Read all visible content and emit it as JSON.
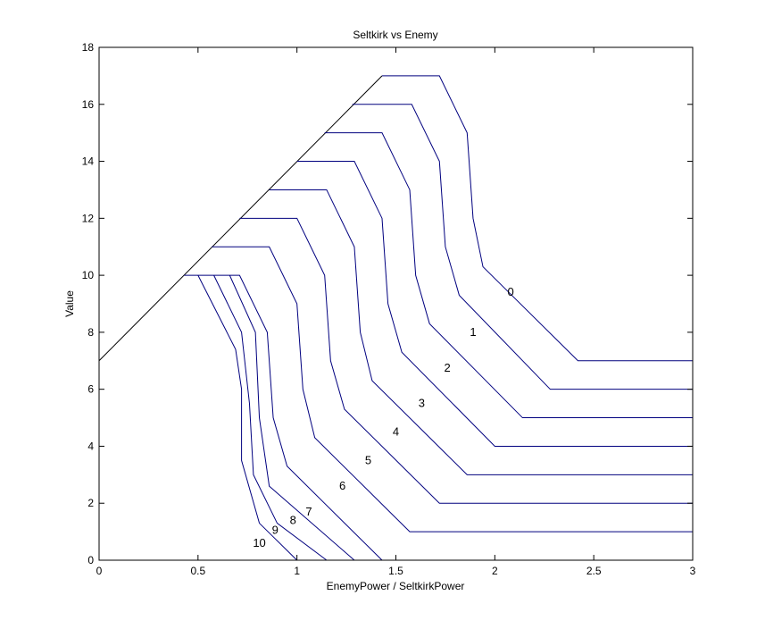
{
  "chart_data": {
    "type": "line",
    "title": "Seltkirk vs Enemy",
    "xlabel": "EnemyPower / SeltkirkPower",
    "ylabel": "Value",
    "xlim": [
      0,
      3
    ],
    "ylim": [
      0,
      18
    ],
    "x_ticks": [
      "0",
      "0.5",
      "1",
      "1.5",
      "2",
      "2.5",
      "3"
    ],
    "y_ticks": [
      "0",
      "2",
      "4",
      "6",
      "8",
      "10",
      "12",
      "14",
      "16",
      "18"
    ],
    "grid": false,
    "colors": {
      "contour": "#00007f",
      "diagonal": "#000000",
      "axes": "#000000"
    },
    "diagonal": {
      "x": [
        0,
        1.43
      ],
      "y": [
        7,
        17
      ]
    },
    "series": [
      {
        "name": "0",
        "label_pos": [
          2.08,
          9.4
        ],
        "x": [
          1.43,
          1.72,
          1.86,
          1.89,
          1.94,
          2.42,
          3.0
        ],
        "y": [
          17,
          17,
          15.0,
          12.0,
          10.3,
          7.0,
          7.0
        ]
      },
      {
        "name": "1",
        "label_pos": [
          1.89,
          8.0
        ],
        "x": [
          1.28,
          1.58,
          1.72,
          1.75,
          1.82,
          2.28,
          3.0
        ],
        "y": [
          16,
          16,
          14.0,
          11.0,
          9.3,
          6.0,
          6.0
        ]
      },
      {
        "name": "2",
        "label_pos": [
          1.76,
          6.75
        ],
        "x": [
          1.14,
          1.43,
          1.57,
          1.6,
          1.67,
          2.14,
          3.0
        ],
        "y": [
          15,
          15,
          13.0,
          10.0,
          8.3,
          5.0,
          5.0
        ]
      },
      {
        "name": "3",
        "label_pos": [
          1.63,
          5.5
        ],
        "x": [
          1.0,
          1.29,
          1.43,
          1.46,
          1.53,
          2.0,
          3.0
        ],
        "y": [
          14,
          14,
          12.0,
          9.0,
          7.3,
          4.0,
          4.0
        ]
      },
      {
        "name": "4",
        "label_pos": [
          1.5,
          4.5
        ],
        "x": [
          0.86,
          1.15,
          1.29,
          1.32,
          1.38,
          1.86,
          3.0
        ],
        "y": [
          13,
          13,
          11.0,
          8.0,
          6.3,
          3.0,
          3.0
        ]
      },
      {
        "name": "5",
        "label_pos": [
          1.36,
          3.5
        ],
        "x": [
          0.71,
          1.0,
          1.14,
          1.17,
          1.24,
          1.72,
          3.0
        ],
        "y": [
          12,
          12,
          10.0,
          7.0,
          5.3,
          2.0,
          2.0
        ]
      },
      {
        "name": "6",
        "label_pos": [
          1.23,
          2.6
        ],
        "x": [
          0.57,
          0.86,
          1.0,
          1.03,
          1.09,
          1.57,
          3.0
        ],
        "y": [
          11,
          11,
          9.0,
          6.0,
          4.3,
          1.0,
          1.0
        ]
      },
      {
        "name": "7",
        "label_pos": [
          1.06,
          1.7
        ],
        "x": [
          0.43,
          0.71,
          0.85,
          0.88,
          0.95,
          1.43
        ],
        "y": [
          10,
          10,
          8.0,
          5.0,
          3.3,
          0.0
        ]
      },
      {
        "name": "8",
        "label_pos": [
          0.98,
          1.4
        ],
        "x": [
          0.66,
          0.79,
          0.81,
          0.86,
          1.29
        ],
        "y": [
          10,
          8.0,
          5.0,
          2.6,
          0.0
        ]
      },
      {
        "name": "9",
        "label_pos": [
          0.89,
          1.05
        ],
        "x": [
          0.58,
          0.72,
          0.76,
          0.78,
          0.9,
          1.15
        ],
        "y": [
          10,
          8.0,
          5.5,
          3.0,
          1.3,
          0.0
        ]
      },
      {
        "name": "10",
        "label_pos": [
          0.81,
          0.6
        ],
        "x": [
          0.5,
          0.69,
          0.72,
          0.72,
          0.81,
          1.0
        ],
        "y": [
          10,
          7.4,
          6.0,
          3.5,
          1.3,
          0.0
        ]
      }
    ]
  }
}
